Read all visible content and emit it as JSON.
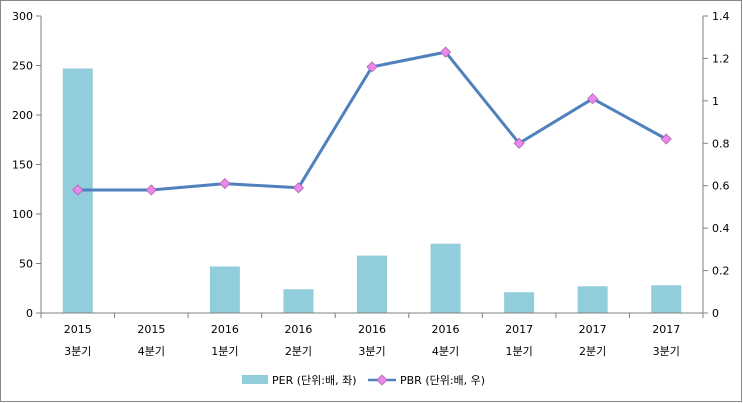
{
  "chart_data": {
    "type": "bar+line",
    "categories": [
      [
        "2015",
        "3분기"
      ],
      [
        "2015",
        "4분기"
      ],
      [
        "2016",
        "1분기"
      ],
      [
        "2016",
        "2분기"
      ],
      [
        "2016",
        "3분기"
      ],
      [
        "2016",
        "4분기"
      ],
      [
        "2017",
        "1분기"
      ],
      [
        "2017",
        "2분기"
      ],
      [
        "2017",
        "3분기"
      ]
    ],
    "series": [
      {
        "name": "PER (단위:배, 좌)",
        "type": "bar",
        "axis": "left",
        "color": "#92CDDC",
        "values": [
          247,
          null,
          47,
          24,
          58,
          70,
          21,
          27,
          28
        ]
      },
      {
        "name": "PBR (단위:배, 우)",
        "type": "line",
        "axis": "right",
        "color": "#4F81BD",
        "marker_color": "#E98AEB",
        "values": [
          0.58,
          0.58,
          0.61,
          0.59,
          1.16,
          1.23,
          0.8,
          1.01,
          0.82
        ]
      }
    ],
    "y_left": {
      "ylim": [
        0,
        300
      ],
      "ticks": [
        "0",
        "50",
        "100",
        "150",
        "200",
        "250",
        "300"
      ]
    },
    "y_right": {
      "ylim": [
        0,
        1.4
      ],
      "ticks": [
        "0",
        "0.2",
        "0.4",
        "0.6",
        "0.8",
        "1",
        "1.2",
        "1.4"
      ]
    },
    "grid": false,
    "legend": "bottom"
  }
}
